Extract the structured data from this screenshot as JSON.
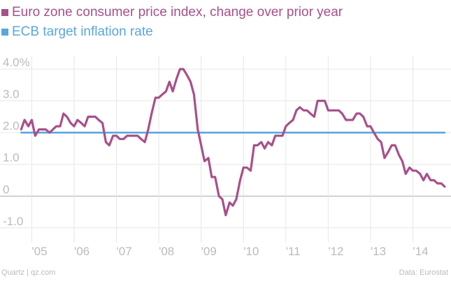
{
  "chart_data": {
    "type": "line",
    "series": [
      {
        "name": "Euro zone consumer price index, change over prior year",
        "color": "#a8508a",
        "points": [
          [
            2004.75,
            2.1
          ],
          [
            2004.83,
            2.4
          ],
          [
            2004.92,
            2.2
          ],
          [
            2005.0,
            2.4
          ],
          [
            2005.08,
            1.9
          ],
          [
            2005.17,
            2.1
          ],
          [
            2005.25,
            2.1
          ],
          [
            2005.33,
            2.1
          ],
          [
            2005.42,
            2.0
          ],
          [
            2005.5,
            2.1
          ],
          [
            2005.58,
            2.2
          ],
          [
            2005.67,
            2.2
          ],
          [
            2005.75,
            2.6
          ],
          [
            2005.83,
            2.5
          ],
          [
            2005.92,
            2.3
          ],
          [
            2006.0,
            2.2
          ],
          [
            2006.08,
            2.4
          ],
          [
            2006.17,
            2.3
          ],
          [
            2006.25,
            2.2
          ],
          [
            2006.33,
            2.5
          ],
          [
            2006.42,
            2.5
          ],
          [
            2006.5,
            2.5
          ],
          [
            2006.58,
            2.4
          ],
          [
            2006.67,
            2.3
          ],
          [
            2006.75,
            1.7
          ],
          [
            2006.83,
            1.6
          ],
          [
            2006.92,
            1.9
          ],
          [
            2007.0,
            1.9
          ],
          [
            2007.08,
            1.8
          ],
          [
            2007.17,
            1.8
          ],
          [
            2007.25,
            1.9
          ],
          [
            2007.33,
            1.9
          ],
          [
            2007.42,
            1.9
          ],
          [
            2007.5,
            1.9
          ],
          [
            2007.58,
            1.8
          ],
          [
            2007.67,
            1.7
          ],
          [
            2007.75,
            2.1
          ],
          [
            2007.83,
            2.6
          ],
          [
            2007.92,
            3.1
          ],
          [
            2008.0,
            3.1
          ],
          [
            2008.08,
            3.2
          ],
          [
            2008.17,
            3.3
          ],
          [
            2008.25,
            3.6
          ],
          [
            2008.33,
            3.3
          ],
          [
            2008.42,
            3.7
          ],
          [
            2008.5,
            4.0
          ],
          [
            2008.58,
            4.0
          ],
          [
            2008.67,
            3.8
          ],
          [
            2008.75,
            3.6
          ],
          [
            2008.83,
            3.2
          ],
          [
            2008.92,
            2.1
          ],
          [
            2009.0,
            1.6
          ],
          [
            2009.08,
            1.1
          ],
          [
            2009.17,
            1.2
          ],
          [
            2009.25,
            0.6
          ],
          [
            2009.33,
            0.6
          ],
          [
            2009.42,
            0.0
          ],
          [
            2009.5,
            -0.1
          ],
          [
            2009.58,
            -0.6
          ],
          [
            2009.67,
            -0.2
          ],
          [
            2009.75,
            -0.3
          ],
          [
            2009.83,
            -0.1
          ],
          [
            2009.92,
            0.5
          ],
          [
            2010.0,
            0.9
          ],
          [
            2010.08,
            0.9
          ],
          [
            2010.17,
            0.8
          ],
          [
            2010.25,
            1.6
          ],
          [
            2010.33,
            1.6
          ],
          [
            2010.42,
            1.7
          ],
          [
            2010.5,
            1.5
          ],
          [
            2010.58,
            1.7
          ],
          [
            2010.67,
            1.6
          ],
          [
            2010.75,
            1.9
          ],
          [
            2010.83,
            1.9
          ],
          [
            2010.92,
            1.9
          ],
          [
            2011.0,
            2.2
          ],
          [
            2011.08,
            2.3
          ],
          [
            2011.17,
            2.4
          ],
          [
            2011.25,
            2.7
          ],
          [
            2011.33,
            2.8
          ],
          [
            2011.42,
            2.7
          ],
          [
            2011.5,
            2.7
          ],
          [
            2011.58,
            2.6
          ],
          [
            2011.67,
            2.5
          ],
          [
            2011.75,
            3.0
          ],
          [
            2011.83,
            3.0
          ],
          [
            2011.92,
            3.0
          ],
          [
            2012.0,
            2.7
          ],
          [
            2012.08,
            2.7
          ],
          [
            2012.17,
            2.7
          ],
          [
            2012.25,
            2.7
          ],
          [
            2012.33,
            2.6
          ],
          [
            2012.42,
            2.4
          ],
          [
            2012.5,
            2.4
          ],
          [
            2012.58,
            2.4
          ],
          [
            2012.67,
            2.6
          ],
          [
            2012.75,
            2.6
          ],
          [
            2012.83,
            2.5
          ],
          [
            2012.92,
            2.2
          ],
          [
            2013.0,
            2.2
          ],
          [
            2013.08,
            2.0
          ],
          [
            2013.17,
            1.8
          ],
          [
            2013.25,
            1.7
          ],
          [
            2013.33,
            1.2
          ],
          [
            2013.42,
            1.4
          ],
          [
            2013.5,
            1.6
          ],
          [
            2013.58,
            1.6
          ],
          [
            2013.67,
            1.3
          ],
          [
            2013.75,
            1.1
          ],
          [
            2013.83,
            0.7
          ],
          [
            2013.92,
            0.9
          ],
          [
            2014.0,
            0.8
          ],
          [
            2014.08,
            0.8
          ],
          [
            2014.17,
            0.7
          ],
          [
            2014.25,
            0.5
          ],
          [
            2014.33,
            0.7
          ],
          [
            2014.42,
            0.5
          ],
          [
            2014.5,
            0.5
          ],
          [
            2014.58,
            0.4
          ],
          [
            2014.67,
            0.4
          ],
          [
            2014.75,
            0.3
          ]
        ]
      },
      {
        "name": "ECB target inflation rate",
        "color": "#5aa7dc",
        "points": [
          [
            2004.75,
            2.0
          ],
          [
            2014.75,
            2.0
          ]
        ]
      }
    ],
    "x_ticks": [
      {
        "value": 2005.0,
        "label": "'05"
      },
      {
        "value": 2006.0,
        "label": "'06"
      },
      {
        "value": 2007.0,
        "label": "'07"
      },
      {
        "value": 2008.0,
        "label": "'08"
      },
      {
        "value": 2009.0,
        "label": "'09"
      },
      {
        "value": 2010.0,
        "label": "'10"
      },
      {
        "value": 2011.0,
        "label": "'11"
      },
      {
        "value": 2012.0,
        "label": "'12"
      },
      {
        "value": 2013.0,
        "label": "'13"
      },
      {
        "value": 2014.0,
        "label": "'14"
      }
    ],
    "y_ticks": [
      {
        "value": 4.0,
        "label": "4.0%"
      },
      {
        "value": 3.0,
        "label": "3.0"
      },
      {
        "value": 2.0,
        "label": "2.0"
      },
      {
        "value": 1.0,
        "label": "1.0"
      },
      {
        "value": 0.0,
        "label": "0"
      },
      {
        "value": -1.0,
        "label": "-1.0"
      }
    ],
    "xlim": [
      2004.25,
      2014.9
    ],
    "ylim": [
      -1.4,
      4.2
    ],
    "grid": true,
    "legend_position": "top-left",
    "title": "",
    "xlabel": "",
    "ylabel": ""
  },
  "footer": {
    "source_left": "Quartz | qz.com",
    "source_right": "Data: Eurostat"
  }
}
